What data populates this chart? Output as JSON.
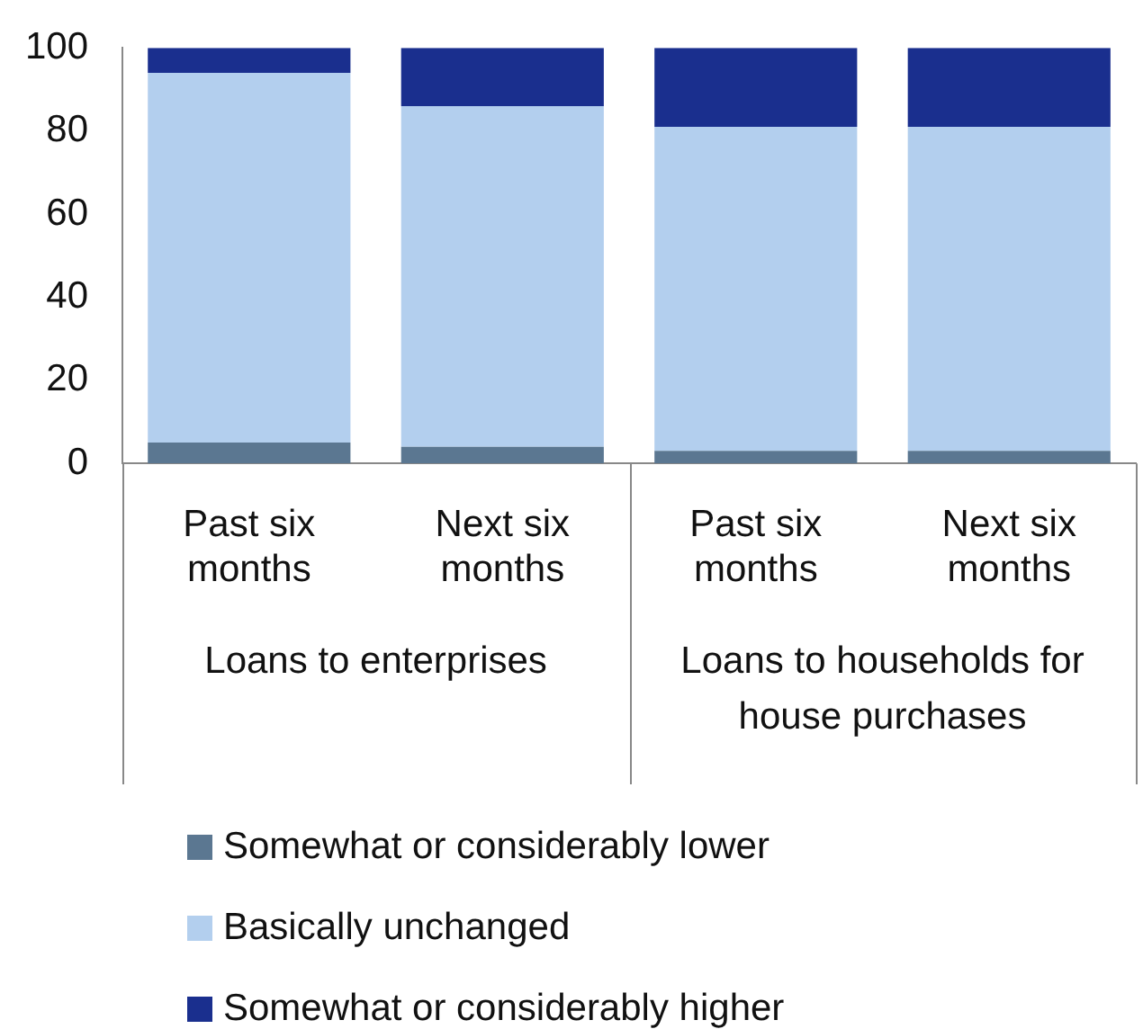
{
  "chart_data": {
    "type": "bar",
    "stacked": true,
    "categories": [
      "Past six months",
      "Next six months",
      "Past six months",
      "Next six months"
    ],
    "series": [
      {
        "name": "Somewhat or considerably lower",
        "color": "#5b7791",
        "values": [
          5,
          4,
          3,
          3
        ]
      },
      {
        "name": "Basically unchanged",
        "color": "#b3cfee",
        "values": [
          89,
          82,
          78,
          78
        ]
      },
      {
        "name": "Somewhat or considerably higher",
        "color": "#1a2f8e",
        "values": [
          6,
          14,
          19,
          19
        ]
      }
    ],
    "ylim": [
      0,
      100
    ],
    "yticks": [
      0,
      20,
      40,
      60,
      80,
      100
    ],
    "grid": false,
    "legend": "bottom",
    "annotations": [
      "Loans to enterprises",
      "Loans to households for house purchases"
    ]
  }
}
